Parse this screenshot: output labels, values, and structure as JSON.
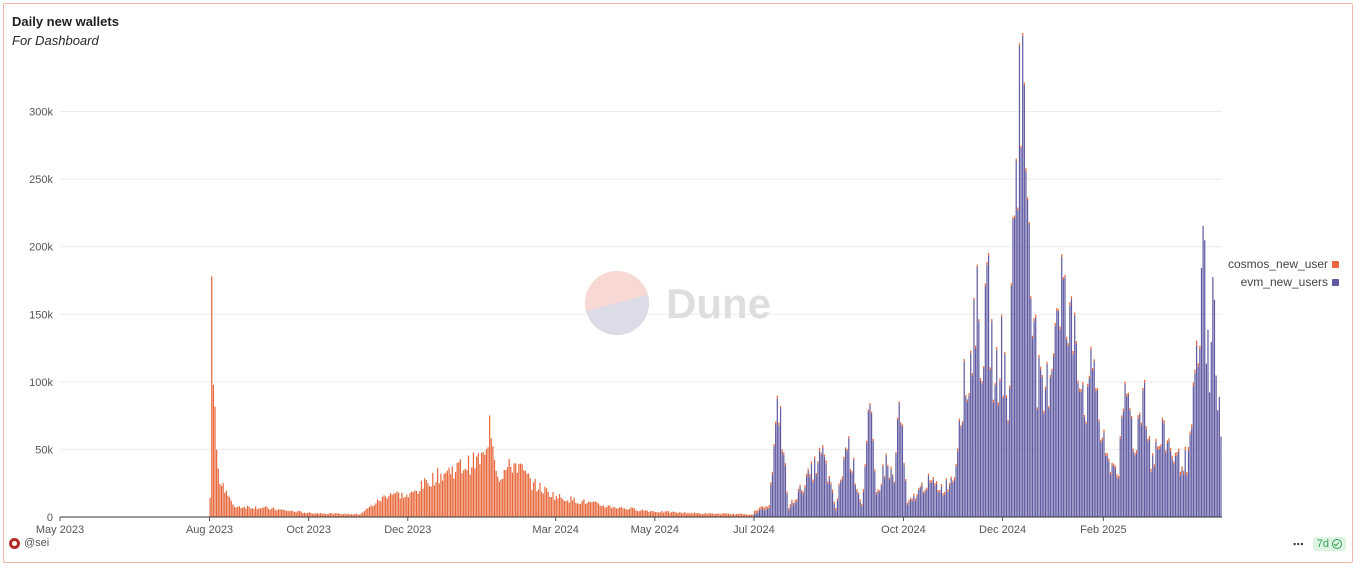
{
  "header": {
    "title": "Daily new wallets",
    "subtitle": "For Dashboard"
  },
  "watermark": {
    "text": "Dune"
  },
  "footer": {
    "author": "@sei",
    "refresh_badge": "7d",
    "more_label": "⋯"
  },
  "colors": {
    "cosmos": "#e8683b",
    "evm": "#5f5aa2",
    "grid": "#ececec",
    "axis": "#555555"
  },
  "chart_data": {
    "type": "bar",
    "stacked": true,
    "title": "Daily new wallets",
    "subtitle": "For Dashboard",
    "xlabel": "",
    "ylabel": "",
    "ylim": [
      0,
      330000
    ],
    "x_ticks": [
      "May 2023",
      "Aug 2023",
      "Oct 2023",
      "Dec 2023",
      "Mar 2024",
      "May 2024",
      "Jul 2024",
      "Oct 2024",
      "Dec 2024",
      "Feb 2025"
    ],
    "y_ticks": [
      "0",
      "50k",
      "100k",
      "150k",
      "200k",
      "250k",
      "300k"
    ],
    "legend": {
      "position": "right",
      "items": [
        "cosmos_new_users",
        "evm_new_users"
      ]
    },
    "series": [
      {
        "name": "cosmos_new_users",
        "points": [
          [
            "2023-08-01",
            15000
          ],
          [
            "2023-08-02",
            160000
          ],
          [
            "2023-08-03",
            100000
          ],
          [
            "2023-08-04",
            75000
          ],
          [
            "2023-08-06",
            30000
          ],
          [
            "2023-08-09",
            25000
          ],
          [
            "2023-08-15",
            8000
          ],
          [
            "2023-09-01",
            7000
          ],
          [
            "2023-09-15",
            5000
          ],
          [
            "2023-10-01",
            3000
          ],
          [
            "2023-11-01",
            2000
          ],
          [
            "2023-11-20",
            18000
          ],
          [
            "2023-12-01",
            15000
          ],
          [
            "2023-12-15",
            28000
          ],
          [
            "2023-12-28",
            35000
          ],
          [
            "2024-01-10",
            40000
          ],
          [
            "2024-01-18",
            45000
          ],
          [
            "2024-01-20",
            77000
          ],
          [
            "2024-01-25",
            30000
          ],
          [
            "2024-02-05",
            40000
          ],
          [
            "2024-02-15",
            25000
          ],
          [
            "2024-03-01",
            15000
          ],
          [
            "2024-04-01",
            8000
          ],
          [
            "2024-05-01",
            4000
          ],
          [
            "2024-06-01",
            2500
          ],
          [
            "2024-07-01",
            2000
          ],
          [
            "2024-08-01",
            2000
          ],
          [
            "2024-10-01",
            1500
          ],
          [
            "2024-12-01",
            2000
          ],
          [
            "2025-03-01",
            2000
          ],
          [
            "2025-04-01",
            3000
          ]
        ]
      },
      {
        "name": "evm_new_users",
        "points": [
          [
            "2024-07-01",
            2000
          ],
          [
            "2024-07-10",
            8000
          ],
          [
            "2024-07-16",
            85000
          ],
          [
            "2024-07-22",
            5000
          ],
          [
            "2024-08-12",
            45000
          ],
          [
            "2024-08-20",
            5000
          ],
          [
            "2024-08-27",
            55000
          ],
          [
            "2024-09-05",
            8000
          ],
          [
            "2024-09-10",
            77000
          ],
          [
            "2024-09-14",
            15000
          ],
          [
            "2024-09-20",
            40000
          ],
          [
            "2024-09-25",
            25000
          ],
          [
            "2024-09-28",
            85000
          ],
          [
            "2024-10-03",
            8000
          ],
          [
            "2024-10-15",
            25000
          ],
          [
            "2024-10-25",
            20000
          ],
          [
            "2024-11-01",
            30000
          ],
          [
            "2024-11-05",
            88000
          ],
          [
            "2024-11-10",
            100000
          ],
          [
            "2024-11-14",
            160000
          ],
          [
            "2024-11-18",
            120000
          ],
          [
            "2024-11-22",
            160000
          ],
          [
            "2024-11-26",
            90000
          ],
          [
            "2024-11-30",
            130000
          ],
          [
            "2024-12-04",
            70000
          ],
          [
            "2024-12-08",
            240000
          ],
          [
            "2024-12-11",
            315000
          ],
          [
            "2024-12-14",
            300000
          ],
          [
            "2024-12-18",
            200000
          ],
          [
            "2024-12-22",
            100000
          ],
          [
            "2024-12-26",
            80000
          ],
          [
            "2024-12-30",
            110000
          ],
          [
            "2025-01-03",
            160000
          ],
          [
            "2025-01-06",
            178000
          ],
          [
            "2025-01-10",
            130000
          ],
          [
            "2025-01-14",
            150000
          ],
          [
            "2025-01-18",
            100000
          ],
          [
            "2025-01-22",
            80000
          ],
          [
            "2025-01-26",
            120000
          ],
          [
            "2025-01-30",
            60000
          ],
          [
            "2025-02-03",
            40000
          ],
          [
            "2025-02-10",
            35000
          ],
          [
            "2025-02-15",
            95000
          ],
          [
            "2025-02-20",
            50000
          ],
          [
            "2025-02-26",
            98000
          ],
          [
            "2025-03-02",
            40000
          ],
          [
            "2025-03-10",
            60000
          ],
          [
            "2025-03-18",
            40000
          ],
          [
            "2025-03-25",
            40000
          ],
          [
            "2025-04-01",
            130000
          ],
          [
            "2025-04-03",
            205000
          ],
          [
            "2025-04-05",
            140000
          ],
          [
            "2025-04-07",
            90000
          ],
          [
            "2025-04-09",
            165000
          ],
          [
            "2025-04-12",
            95000
          ],
          [
            "2025-04-14",
            55000
          ]
        ]
      }
    ]
  }
}
